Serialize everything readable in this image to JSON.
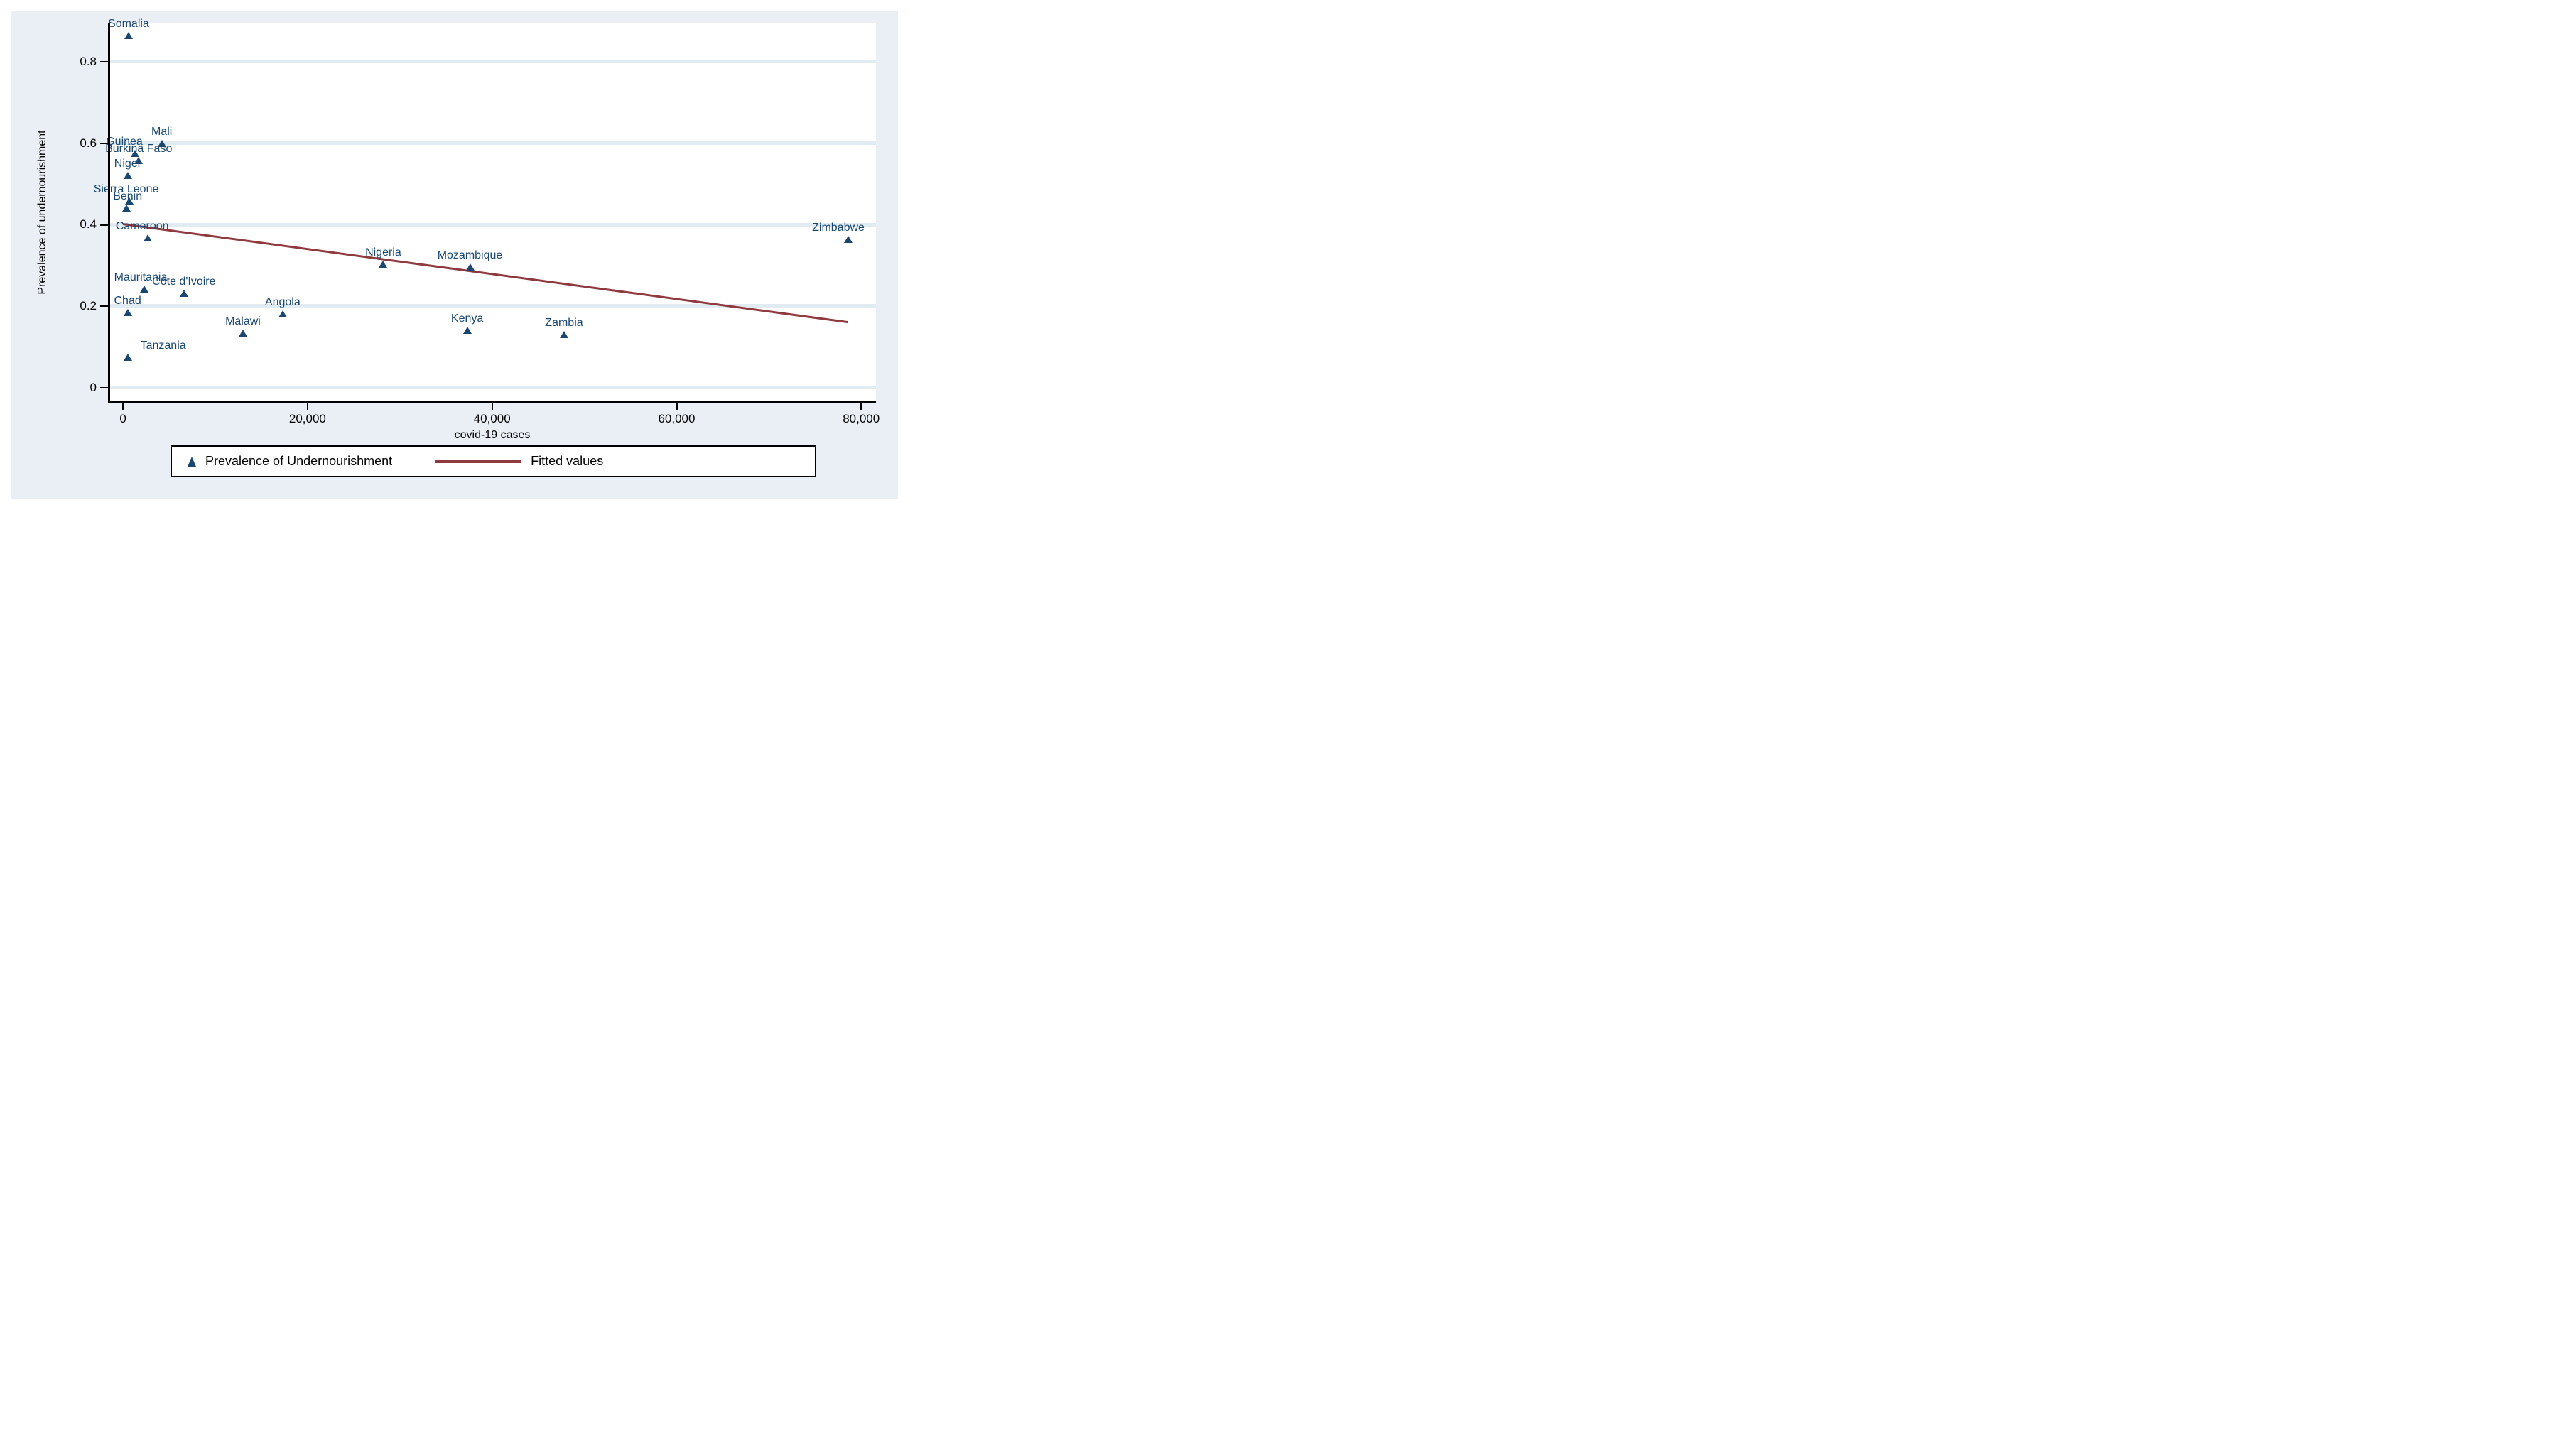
{
  "colors": {
    "figure_bg": "#e9eff4",
    "plot_bg": "#ffffff",
    "grid": "#e0ebf2",
    "axis": "#000000",
    "marker": "#1a476f",
    "fit_line": "#8f3a3e",
    "country_label": "#1a476f",
    "legend_bg": "#ffffff",
    "legend_border": "#000000",
    "tick_text": "#000000"
  },
  "chart_data": {
    "type": "scatter",
    "title": "",
    "xlabel": "covid-19 cases",
    "ylabel": "Prevalence of undernourishment",
    "grid": "horizontal",
    "xlim": [
      -1550,
      81600
    ],
    "ylim": [
      -0.032,
      0.894
    ],
    "x_ticks": [
      {
        "value": 0,
        "label": "0"
      },
      {
        "value": 20000,
        "label": "20,000"
      },
      {
        "value": 40000,
        "label": "40,000"
      },
      {
        "value": 60000,
        "label": "60,000"
      },
      {
        "value": 80000,
        "label": "80,000"
      }
    ],
    "y_ticks": [
      {
        "value": 0,
        "label": "0"
      },
      {
        "value": 0.2,
        "label": "0.2"
      },
      {
        "value": 0.4,
        "label": "0.4"
      },
      {
        "value": 0.6,
        "label": "0.6"
      },
      {
        "value": 0.8,
        "label": "0.8"
      }
    ],
    "points": [
      {
        "name": "Somalia",
        "cases": 600,
        "value": 0.865,
        "label_dx": 0
      },
      {
        "name": "Mali",
        "cases": 4200,
        "value": 0.6,
        "label_dx": 0
      },
      {
        "name": "Guinea",
        "cases": 1300,
        "value": 0.575,
        "label_dx": -15
      },
      {
        "name": "Burkina Faso",
        "cases": 1700,
        "value": 0.558,
        "label_dx": 0
      },
      {
        "name": "Niger",
        "cases": 520,
        "value": 0.52,
        "label_dx": 0
      },
      {
        "name": "Sierra Leone",
        "cases": 650,
        "value": 0.458,
        "label_dx": -4
      },
      {
        "name": "Benin",
        "cases": 350,
        "value": 0.44,
        "label_dx": 2
      },
      {
        "name": "Cameroon",
        "cases": 2700,
        "value": 0.368,
        "label_dx": -8
      },
      {
        "name": "Mauritania",
        "cases": 2300,
        "value": 0.242,
        "label_dx": -5
      },
      {
        "name": "Côte d'Ivoire",
        "cases": 6600,
        "value": 0.232,
        "label_dx": 0
      },
      {
        "name": "Chad",
        "cases": 500,
        "value": 0.185,
        "label_dx": 0
      },
      {
        "name": "Tanzania",
        "cases": 500,
        "value": 0.074,
        "label_dx": 50
      },
      {
        "name": "Malawi",
        "cases": 13000,
        "value": 0.134,
        "label_dx": 0
      },
      {
        "name": "Angola",
        "cases": 17300,
        "value": 0.18,
        "label_dx": 0
      },
      {
        "name": "Nigeria",
        "cases": 28200,
        "value": 0.303,
        "label_dx": 0
      },
      {
        "name": "Mozambique",
        "cases": 37600,
        "value": 0.295,
        "label_dx": 0
      },
      {
        "name": "Kenya",
        "cases": 37300,
        "value": 0.14,
        "label_dx": 0
      },
      {
        "name": "Zambia",
        "cases": 47800,
        "value": 0.13,
        "label_dx": 0
      },
      {
        "name": "Zimbabwe",
        "cases": 78600,
        "value": 0.363,
        "label_dx": -14
      }
    ],
    "fit_line": {
      "x1_cases": 0,
      "y1": 0.401,
      "x2_cases": 78600,
      "y2": 0.16
    },
    "legend": {
      "position": "bottom",
      "entries": [
        {
          "type": "marker",
          "label": "Prevalence of Undernourishment"
        },
        {
          "type": "line",
          "label": "Fitted values"
        }
      ]
    }
  }
}
